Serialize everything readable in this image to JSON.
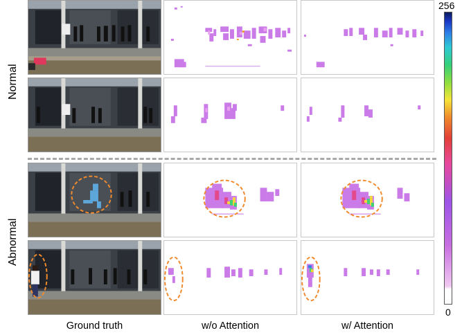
{
  "figure": {
    "row_labels": {
      "normal": "Normal",
      "abnormal": "Abnormal"
    },
    "column_labels": [
      "Ground truth",
      "w/o Attention",
      "w/ Attention"
    ],
    "colorbar": {
      "max_label": "256",
      "min_label": "0"
    },
    "colors": {
      "heat_primary": "#c060e0",
      "anomaly_circle": "#f08a2c",
      "divider": "#a9a9a9"
    }
  }
}
